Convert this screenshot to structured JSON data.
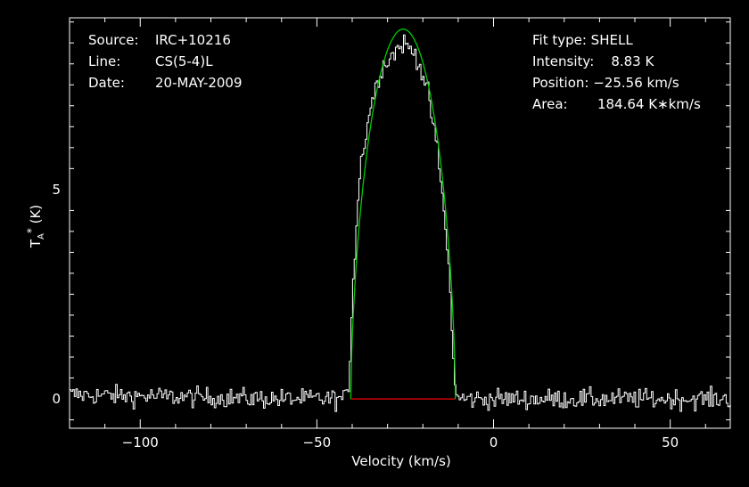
{
  "header_left": {
    "rows": [
      {
        "key": "Source:",
        "value": "IRC+10216"
      },
      {
        "key": "Line:",
        "value": "CS(5-4)L"
      },
      {
        "key": "Date:",
        "value": "20-MAY-2009"
      }
    ]
  },
  "header_right": {
    "rows": [
      {
        "text": "Fit type: SHELL"
      },
      {
        "text": "Intensity:    8.83 K"
      },
      {
        "text": "Position: −25.56 km/s"
      },
      {
        "text": "Area:       184.64 K∗km/s"
      }
    ]
  },
  "colors": {
    "background": "#000000",
    "axes": "#ffffff",
    "spectrum": "#ffffff",
    "fit": "#00cc00",
    "baseline": "#cc0000"
  },
  "chart_data": {
    "type": "line",
    "title": "",
    "xlabel": "Velocity (km/s)",
    "ylabel": "T_A* (K)",
    "xlim": [
      -120,
      67
    ],
    "ylim": [
      -0.7,
      9.1
    ],
    "x_ticks": [
      -100,
      -50,
      0,
      50
    ],
    "x_tick_labels": [
      "−100",
      "−50",
      "0",
      "50"
    ],
    "y_ticks": [
      0,
      5
    ],
    "y_tick_labels": [
      "0",
      "5"
    ],
    "grid": false,
    "series": [
      {
        "type": "noisy-spectrum",
        "color": "#ffffff",
        "x_range": [
          -120,
          67
        ],
        "baseline_noise_rms": 0.12,
        "approx_profile": [
          [
            -120,
            0.1
          ],
          [
            -60,
            0.0
          ],
          [
            -42,
            0.0
          ],
          [
            -41,
            0.5
          ],
          [
            -40,
            2.8
          ],
          [
            -38,
            5.5
          ],
          [
            -35,
            7.0
          ],
          [
            -32,
            7.9
          ],
          [
            -28,
            8.3
          ],
          [
            -25.6,
            8.5
          ],
          [
            -22,
            8.2
          ],
          [
            -19,
            7.4
          ],
          [
            -16,
            5.9
          ],
          [
            -13,
            3.4
          ],
          [
            -11.5,
            0.8
          ],
          [
            -10.5,
            0.0
          ],
          [
            0,
            0.0
          ],
          [
            67,
            0.0
          ]
        ]
      },
      {
        "type": "shell-fit",
        "color": "#00cc00",
        "intensity": 8.83,
        "position": -25.56,
        "area": 184.64,
        "x_range": [
          -40.4,
          -10.8
        ]
      },
      {
        "type": "baseline",
        "color": "#cc0000",
        "x_range": [
          -40.4,
          -10.8
        ],
        "y": 0
      }
    ]
  }
}
